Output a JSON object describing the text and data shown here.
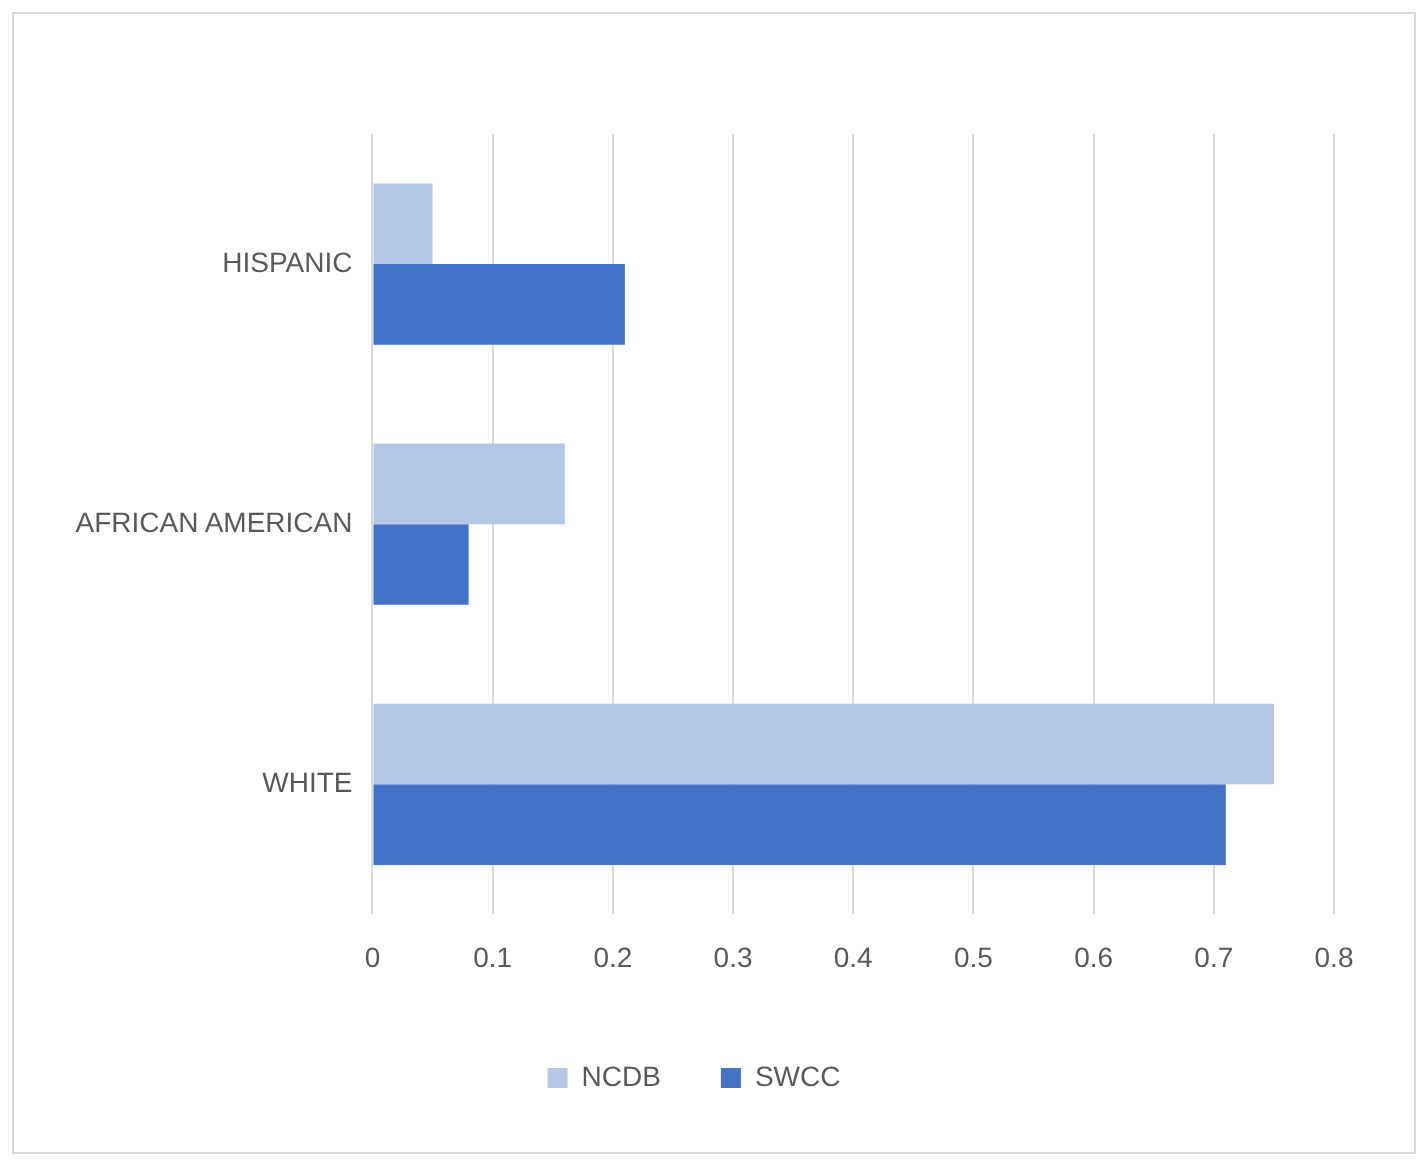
{
  "chart_data": {
    "type": "bar",
    "orientation": "horizontal",
    "categories": [
      "HISPANIC",
      "AFRICAN AMERICAN",
      "WHITE"
    ],
    "series": [
      {
        "name": "NCDB",
        "color": "#b4c7e7",
        "values": [
          0.05,
          0.16,
          0.75
        ]
      },
      {
        "name": "SWCC",
        "color": "#4472c4",
        "values": [
          0.21,
          0.08,
          0.71
        ]
      }
    ],
    "xlim": [
      0,
      0.8
    ],
    "xticks": [
      0,
      0.1,
      0.2,
      0.3,
      0.4,
      0.5,
      0.6,
      0.7,
      0.8
    ],
    "grid": "x",
    "legend": "bottom"
  }
}
